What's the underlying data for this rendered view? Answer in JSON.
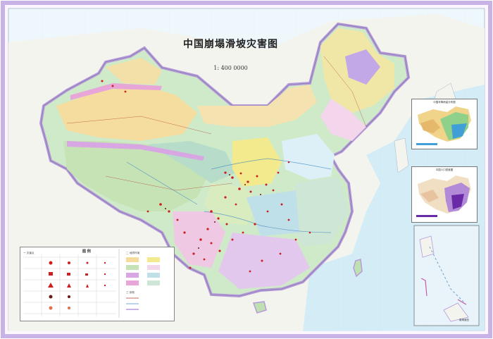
{
  "map": {
    "title": "中国崩塌滑坡灾害图",
    "scale": "1: 400 0000"
  },
  "legend": {
    "title": "图    例",
    "section_hazard": "一 灾害点",
    "section_terrain": "二 地质环境",
    "section_other": "三 其他"
  },
  "insets": {
    "precipitation": {
      "caption": "中国年降雨量分布图"
    },
    "population": {
      "caption": "中国人口密度图"
    },
    "south_china_sea": {
      "caption": "南海诸岛"
    }
  },
  "colors": {
    "ocean": "#dceff7",
    "border": "#c9b3e6",
    "desert": "#f5dc9a",
    "plateau_green": "#bfe6b4",
    "hazard_dot": "#cc1f1f"
  }
}
